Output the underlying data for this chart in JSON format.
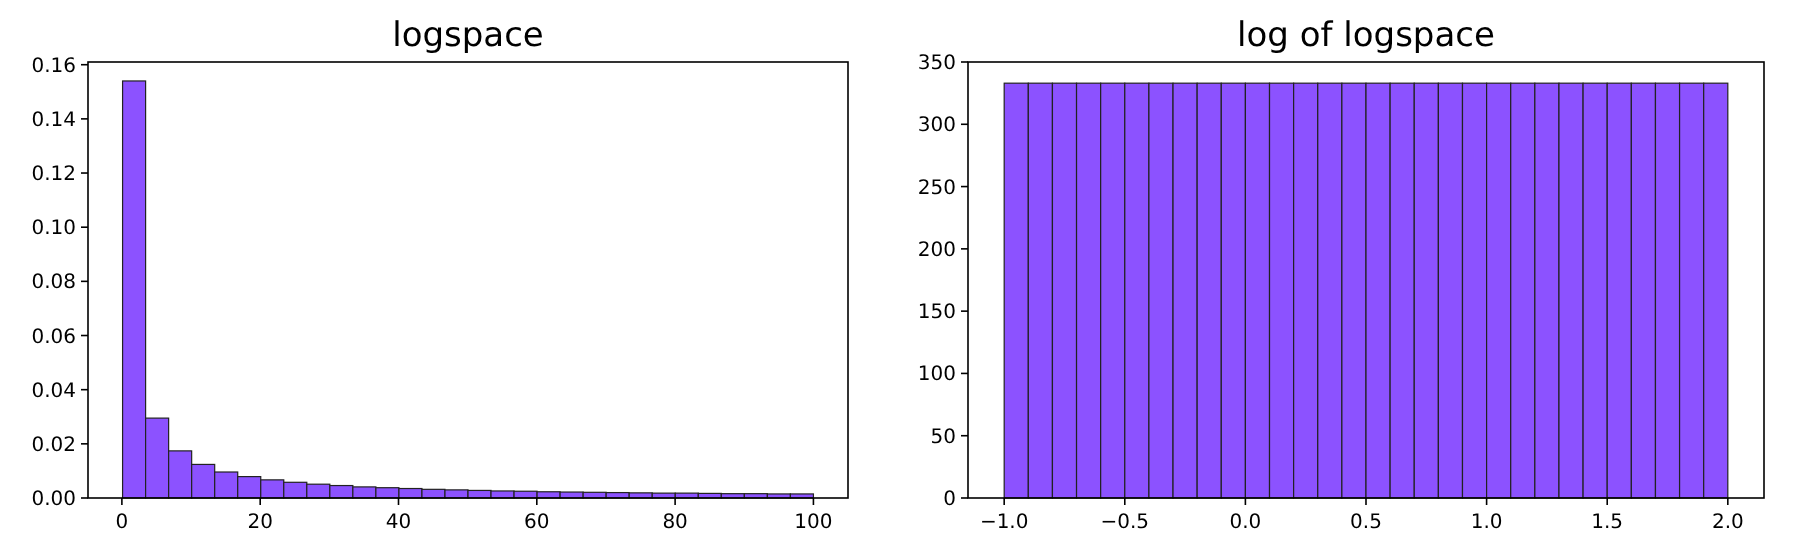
{
  "chart_data": [
    {
      "type": "histogram",
      "title": "logspace",
      "color": "#8c52ff",
      "bins": [
        0.1,
        3.43,
        6.76,
        10.09,
        13.42,
        16.75,
        20.08,
        23.41,
        26.74,
        30.07,
        33.4,
        36.73,
        40.06,
        43.39,
        46.72,
        50.05,
        53.38,
        56.71,
        60.04,
        63.37,
        66.7,
        70.03,
        73.36,
        76.69,
        80.02,
        83.35,
        86.68,
        90.01,
        93.34,
        96.67,
        100
      ],
      "values": [
        0.154,
        0.0295,
        0.0174,
        0.0124,
        0.0096,
        0.0079,
        0.0067,
        0.0058,
        0.0051,
        0.0046,
        0.0041,
        0.0038,
        0.0035,
        0.0032,
        0.003,
        0.0028,
        0.0026,
        0.0025,
        0.0023,
        0.0022,
        0.0021,
        0.002,
        0.0019,
        0.0018,
        0.0018,
        0.0017,
        0.0016,
        0.0016,
        0.0015,
        0.0015
      ],
      "xlim": [
        -4.9,
        105
      ],
      "xticks": [
        0,
        20,
        40,
        60,
        80,
        100
      ],
      "ylim": [
        0,
        0.161
      ],
      "yticks": [
        {
          "value": 0,
          "label": "0.00"
        },
        {
          "value": 0.02,
          "label": "0.02"
        },
        {
          "value": 0.04,
          "label": "0.04"
        },
        {
          "value": 0.06,
          "label": "0.06"
        },
        {
          "value": 0.08,
          "label": "0.08"
        },
        {
          "value": 0.1,
          "label": "0.10"
        },
        {
          "value": 0.12,
          "label": "0.12"
        },
        {
          "value": 0.14,
          "label": "0.14"
        },
        {
          "value": 0.16,
          "label": "0.16"
        }
      ]
    },
    {
      "type": "histogram",
      "title": "log of logspace",
      "color": "#8c52ff",
      "bins": [
        -1,
        -0.9,
        -0.8,
        -0.7,
        -0.6,
        -0.5,
        -0.4,
        -0.3,
        -0.2,
        -0.1,
        0,
        0.1,
        0.2,
        0.3,
        0.4,
        0.5,
        0.6,
        0.7,
        0.8,
        0.9,
        1,
        1.1,
        1.2,
        1.3,
        1.4,
        1.5,
        1.6,
        1.7,
        1.8,
        1.9,
        2
      ],
      "values": [
        333,
        333,
        333,
        333,
        333,
        333,
        333,
        333,
        333,
        333,
        333,
        333,
        333,
        333,
        333,
        333,
        333,
        333,
        333,
        333,
        333,
        333,
        333,
        333,
        333,
        333,
        333,
        333,
        333,
        333
      ],
      "xlim": [
        -1.15,
        2.15
      ],
      "xticks": [
        {
          "value": -1,
          "label": "−1.0"
        },
        {
          "value": -0.5,
          "label": "−0.5"
        },
        {
          "value": 0,
          "label": "0.0"
        },
        {
          "value": 0.5,
          "label": "0.5"
        },
        {
          "value": 1,
          "label": "1.0"
        },
        {
          "value": 1.5,
          "label": "1.5"
        },
        {
          "value": 2,
          "label": "2.0"
        }
      ],
      "ylim": [
        0,
        350
      ],
      "yticks": [
        0,
        50,
        100,
        150,
        200,
        250,
        300,
        350
      ]
    }
  ]
}
